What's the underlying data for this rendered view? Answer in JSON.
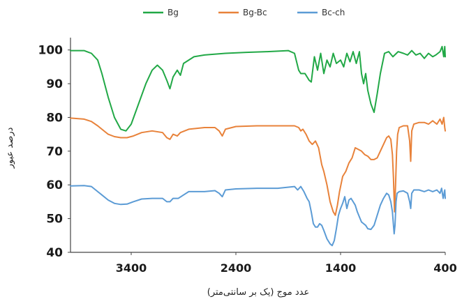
{
  "chart_data": {
    "type": "line",
    "xlabel": "عدد موج (یک بر سانتی‌متر)",
    "ylabel": "درصد عبور",
    "x_ticks": [
      3400,
      2400,
      1400,
      400
    ],
    "y_ticks": [
      100,
      90,
      80,
      70,
      60,
      50,
      40
    ],
    "xlim": [
      3980,
      400
    ],
    "ylim": [
      40,
      102
    ],
    "x_reversed": true,
    "grid": false,
    "legend_position": "top",
    "series": [
      {
        "name": "Bg",
        "color": "#21a846",
        "points": [
          [
            3980,
            99.8
          ],
          [
            3850,
            99.8
          ],
          [
            3780,
            99.0
          ],
          [
            3720,
            97.0
          ],
          [
            3680,
            93.0
          ],
          [
            3620,
            86.0
          ],
          [
            3560,
            80.0
          ],
          [
            3500,
            76.5
          ],
          [
            3450,
            76.0
          ],
          [
            3400,
            78.0
          ],
          [
            3330,
            84.0
          ],
          [
            3260,
            90.0
          ],
          [
            3200,
            94.0
          ],
          [
            3150,
            95.5
          ],
          [
            3100,
            94.0
          ],
          [
            3060,
            91.0
          ],
          [
            3030,
            88.5
          ],
          [
            3000,
            92.0
          ],
          [
            2960,
            94.0
          ],
          [
            2930,
            92.5
          ],
          [
            2900,
            96.0
          ],
          [
            2800,
            98.0
          ],
          [
            2700,
            98.5
          ],
          [
            2500,
            99.0
          ],
          [
            2300,
            99.3
          ],
          [
            2100,
            99.5
          ],
          [
            1900,
            99.8
          ],
          [
            1840,
            99.0
          ],
          [
            1800,
            94.0
          ],
          [
            1780,
            93.0
          ],
          [
            1740,
            93.0
          ],
          [
            1700,
            91.0
          ],
          [
            1680,
            90.5
          ],
          [
            1650,
            98.0
          ],
          [
            1620,
            94.0
          ],
          [
            1590,
            99.0
          ],
          [
            1560,
            93.0
          ],
          [
            1530,
            97.0
          ],
          [
            1500,
            95.0
          ],
          [
            1470,
            99.0
          ],
          [
            1440,
            96.0
          ],
          [
            1400,
            97.0
          ],
          [
            1370,
            95.0
          ],
          [
            1340,
            99.0
          ],
          [
            1310,
            96.5
          ],
          [
            1280,
            99.5
          ],
          [
            1250,
            96.0
          ],
          [
            1220,
            99.5
          ],
          [
            1200,
            93.0
          ],
          [
            1180,
            90.0
          ],
          [
            1160,
            93.0
          ],
          [
            1140,
            88.0
          ],
          [
            1110,
            84.0
          ],
          [
            1080,
            81.5
          ],
          [
            1050,
            87.0
          ],
          [
            1020,
            93.0
          ],
          [
            980,
            99.0
          ],
          [
            940,
            99.5
          ],
          [
            900,
            98.0
          ],
          [
            850,
            99.5
          ],
          [
            800,
            99.0
          ],
          [
            760,
            98.5
          ],
          [
            720,
            99.8
          ],
          [
            680,
            98.5
          ],
          [
            640,
            99.0
          ],
          [
            600,
            97.5
          ],
          [
            560,
            99.0
          ],
          [
            520,
            98.0
          ],
          [
            490,
            98.5
          ],
          [
            450,
            99.5
          ],
          [
            430,
            101.0
          ],
          [
            415,
            98.0
          ],
          [
            405,
            101.0
          ],
          [
            400,
            98.0
          ]
        ]
      },
      {
        "name": "Bg-Bc",
        "color": "#e8823a",
        "points": [
          [
            3980,
            79.8
          ],
          [
            3850,
            79.5
          ],
          [
            3780,
            78.8
          ],
          [
            3720,
            77.5
          ],
          [
            3680,
            76.5
          ],
          [
            3620,
            75.0
          ],
          [
            3560,
            74.3
          ],
          [
            3500,
            74.0
          ],
          [
            3440,
            74.0
          ],
          [
            3380,
            74.5
          ],
          [
            3300,
            75.5
          ],
          [
            3200,
            76.0
          ],
          [
            3100,
            75.5
          ],
          [
            3060,
            74.0
          ],
          [
            3030,
            73.5
          ],
          [
            3000,
            75.0
          ],
          [
            2960,
            74.5
          ],
          [
            2930,
            75.5
          ],
          [
            2850,
            76.5
          ],
          [
            2700,
            77.0
          ],
          [
            2600,
            77.0
          ],
          [
            2560,
            76.0
          ],
          [
            2530,
            74.5
          ],
          [
            2500,
            76.5
          ],
          [
            2400,
            77.3
          ],
          [
            2200,
            77.5
          ],
          [
            2000,
            77.5
          ],
          [
            1840,
            77.5
          ],
          [
            1800,
            77.0
          ],
          [
            1780,
            76.0
          ],
          [
            1760,
            76.5
          ],
          [
            1730,
            75.0
          ],
          [
            1700,
            73.0
          ],
          [
            1670,
            72.0
          ],
          [
            1640,
            73.0
          ],
          [
            1610,
            71.0
          ],
          [
            1580,
            66.0
          ],
          [
            1560,
            64.0
          ],
          [
            1530,
            60.0
          ],
          [
            1500,
            55.0
          ],
          [
            1470,
            52.0
          ],
          [
            1450,
            51.0
          ],
          [
            1430,
            54.0
          ],
          [
            1410,
            58.0
          ],
          [
            1380,
            62.5
          ],
          [
            1350,
            64.0
          ],
          [
            1320,
            66.5
          ],
          [
            1290,
            68.0
          ],
          [
            1260,
            71.0
          ],
          [
            1230,
            70.5
          ],
          [
            1200,
            70.0
          ],
          [
            1170,
            69.0
          ],
          [
            1140,
            68.5
          ],
          [
            1110,
            67.5
          ],
          [
            1080,
            67.5
          ],
          [
            1050,
            68.0
          ],
          [
            1020,
            70.0
          ],
          [
            990,
            72.0
          ],
          [
            960,
            74.0
          ],
          [
            940,
            74.5
          ],
          [
            920,
            73.5
          ],
          [
            905,
            69.0
          ],
          [
            895,
            62.0
          ],
          [
            885,
            52.0
          ],
          [
            875,
            60.0
          ],
          [
            865,
            70.0
          ],
          [
            855,
            75.0
          ],
          [
            840,
            77.0
          ],
          [
            800,
            77.5
          ],
          [
            760,
            77.5
          ],
          [
            740,
            73.0
          ],
          [
            730,
            67.0
          ],
          [
            720,
            76.0
          ],
          [
            700,
            78.0
          ],
          [
            650,
            78.5
          ],
          [
            600,
            78.5
          ],
          [
            560,
            78.0
          ],
          [
            520,
            79.0
          ],
          [
            480,
            78.0
          ],
          [
            450,
            79.5
          ],
          [
            430,
            78.0
          ],
          [
            415,
            80.0
          ],
          [
            405,
            77.0
          ],
          [
            400,
            76.0
          ]
        ]
      },
      {
        "name": "Bc-ch",
        "color": "#5b9bd5",
        "points": [
          [
            3980,
            59.7
          ],
          [
            3850,
            59.8
          ],
          [
            3780,
            59.5
          ],
          [
            3720,
            58.0
          ],
          [
            3680,
            57.0
          ],
          [
            3620,
            55.5
          ],
          [
            3560,
            54.5
          ],
          [
            3500,
            54.2
          ],
          [
            3440,
            54.3
          ],
          [
            3380,
            55.0
          ],
          [
            3300,
            55.8
          ],
          [
            3200,
            56.0
          ],
          [
            3100,
            56.0
          ],
          [
            3060,
            55.0
          ],
          [
            3030,
            55.0
          ],
          [
            3000,
            56.0
          ],
          [
            2950,
            56.0
          ],
          [
            2900,
            57.0
          ],
          [
            2850,
            58.0
          ],
          [
            2700,
            58.0
          ],
          [
            2600,
            58.3
          ],
          [
            2560,
            57.5
          ],
          [
            2530,
            56.5
          ],
          [
            2500,
            58.5
          ],
          [
            2400,
            58.8
          ],
          [
            2200,
            59.0
          ],
          [
            2000,
            59.0
          ],
          [
            1840,
            59.5
          ],
          [
            1810,
            58.5
          ],
          [
            1780,
            59.5
          ],
          [
            1750,
            58.0
          ],
          [
            1720,
            56.0
          ],
          [
            1700,
            55.0
          ],
          [
            1680,
            52.0
          ],
          [
            1660,
            48.5
          ],
          [
            1640,
            47.5
          ],
          [
            1620,
            47.5
          ],
          [
            1600,
            48.5
          ],
          [
            1580,
            48.0
          ],
          [
            1560,
            46.5
          ],
          [
            1530,
            44.0
          ],
          [
            1500,
            42.5
          ],
          [
            1480,
            42.0
          ],
          [
            1460,
            43.5
          ],
          [
            1440,
            47.0
          ],
          [
            1420,
            51.0
          ],
          [
            1400,
            53.0
          ],
          [
            1380,
            54.5
          ],
          [
            1360,
            56.5
          ],
          [
            1340,
            53.0
          ],
          [
            1320,
            55.5
          ],
          [
            1300,
            56.0
          ],
          [
            1280,
            55.0
          ],
          [
            1260,
            54.0
          ],
          [
            1240,
            52.0
          ],
          [
            1220,
            50.5
          ],
          [
            1200,
            49.0
          ],
          [
            1180,
            48.5
          ],
          [
            1160,
            48.0
          ],
          [
            1140,
            47.0
          ],
          [
            1110,
            46.8
          ],
          [
            1080,
            48.0
          ],
          [
            1050,
            51.0
          ],
          [
            1020,
            54.0
          ],
          [
            990,
            56.0
          ],
          [
            960,
            57.5
          ],
          [
            940,
            57.0
          ],
          [
            920,
            55.0
          ],
          [
            905,
            52.0
          ],
          [
            895,
            48.0
          ],
          [
            888,
            45.5
          ],
          [
            880,
            48.0
          ],
          [
            870,
            55.0
          ],
          [
            860,
            57.5
          ],
          [
            840,
            58.0
          ],
          [
            800,
            58.2
          ],
          [
            760,
            57.5
          ],
          [
            740,
            55.0
          ],
          [
            730,
            53.0
          ],
          [
            720,
            57.5
          ],
          [
            700,
            58.5
          ],
          [
            650,
            58.5
          ],
          [
            600,
            58.0
          ],
          [
            560,
            58.5
          ],
          [
            520,
            58.0
          ],
          [
            480,
            58.5
          ],
          [
            450,
            57.5
          ],
          [
            435,
            59.0
          ],
          [
            420,
            56.0
          ],
          [
            405,
            58.5
          ],
          [
            400,
            56.0
          ]
        ]
      }
    ]
  }
}
